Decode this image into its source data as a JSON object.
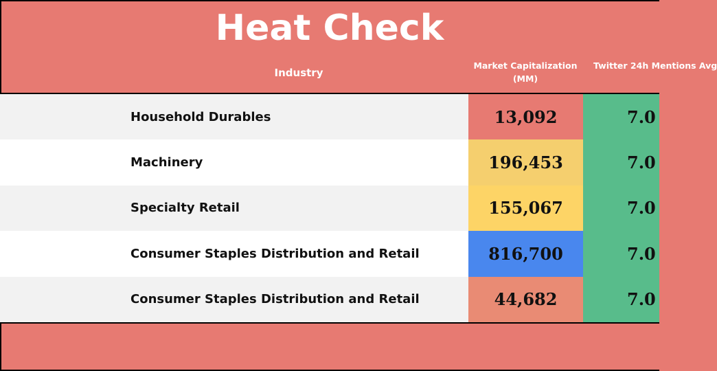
{
  "title": "Heat Check",
  "headers": {
    "industry": "Industry",
    "market_cap": "Market Capitalization (MM)",
    "twitter": "Twitter 24h Mentions Avg"
  },
  "colors": {
    "background": "#e77a72",
    "row_light": "#f2f2f2",
    "row_white": "#ffffff",
    "twitter_cell": "#58bc8b"
  },
  "chart_data": {
    "type": "table",
    "title": "Heat Check",
    "columns": [
      "Industry",
      "Market Capitalization (MM)",
      "Twitter 24h Mentions Avg"
    ],
    "rows": [
      {
        "industry": "Household Durables",
        "market_cap": "13,092",
        "market_cap_color": "#e77a72",
        "twitter": "7.0"
      },
      {
        "industry": "Machinery",
        "market_cap": "196,453",
        "market_cap_color": "#f5cf6e",
        "twitter": "7.0"
      },
      {
        "industry": "Specialty Retail",
        "market_cap": "155,067",
        "market_cap_color": "#fdd466",
        "twitter": "7.0"
      },
      {
        "industry": "Consumer Staples Distribution and Retail",
        "market_cap": "816,700",
        "market_cap_color": "#4987ee",
        "twitter": "7.0"
      },
      {
        "industry": "Consumer Staples Distribution and Retail",
        "market_cap": "44,682",
        "market_cap_color": "#e98b74",
        "twitter": "7.0"
      }
    ]
  }
}
